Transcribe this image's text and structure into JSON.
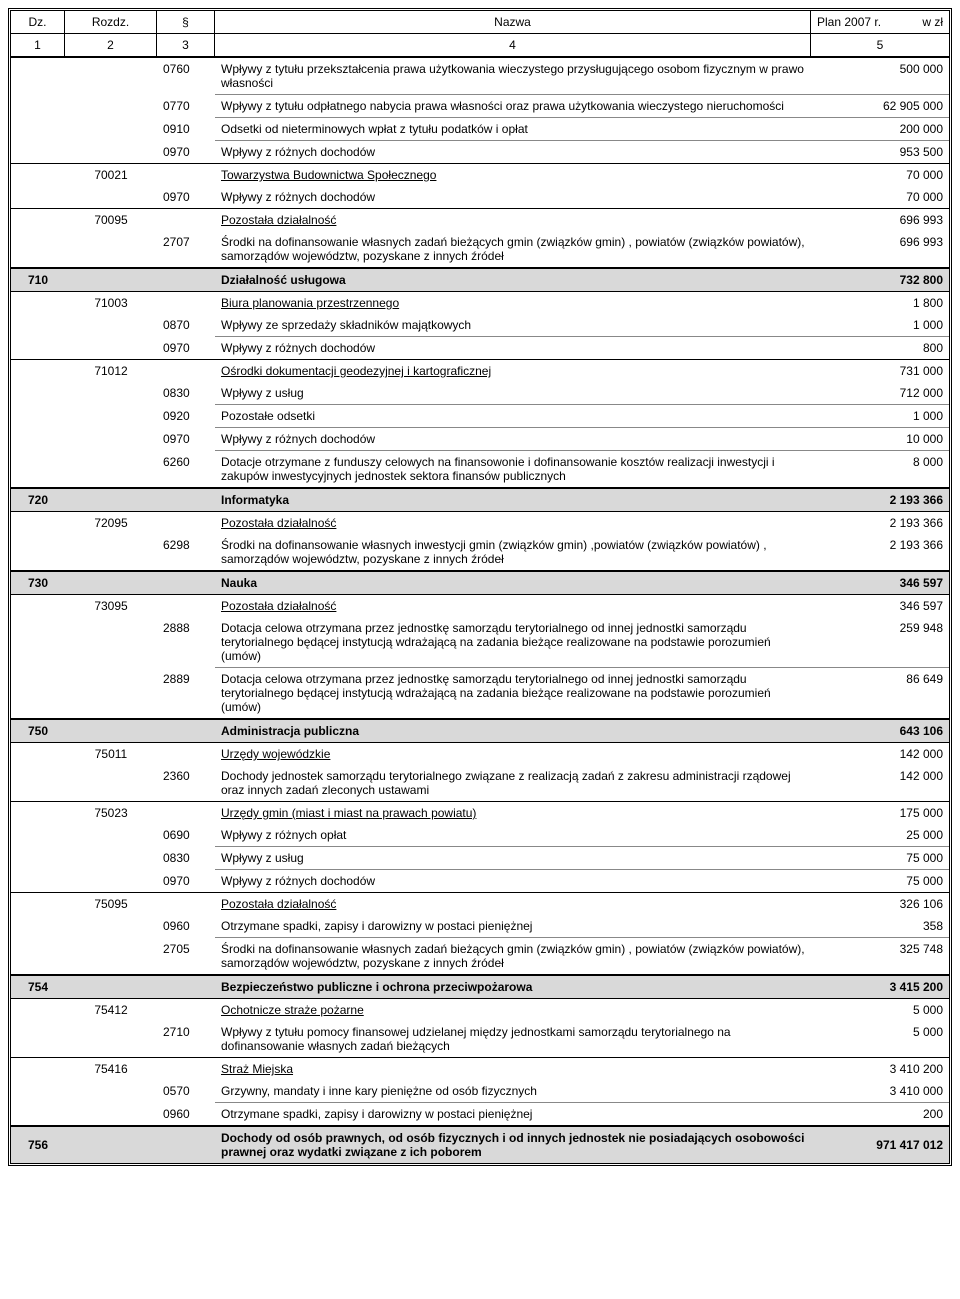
{
  "header": {
    "dz": "Dz.",
    "rozdz": "Rozdz.",
    "par": "§",
    "nazwa": "Nazwa",
    "plan": "Plan 2007 r.",
    "unit": "w zł",
    "n1": "1",
    "n2": "2",
    "n3": "3",
    "n4": "4",
    "n5": "5"
  },
  "rows": [
    {
      "type": "detail",
      "par": "0760",
      "nazwa": "Wpływy z tytułu przekształcenia prawa użytkowania wieczystego przysługującego osobom fizycznym w prawo własności",
      "plan": "500 000",
      "sep": false
    },
    {
      "type": "detail",
      "par": "0770",
      "nazwa": "Wpływy z tytułu odpłatnego nabycia prawa własności oraz prawa użytkowania wieczystego nieruchomości",
      "plan": "62 905 000",
      "sep": true
    },
    {
      "type": "detail",
      "par": "0910",
      "nazwa": "Odsetki od nieterminowych wpłat z tytułu podatków i opłat",
      "plan": "200 000",
      "sep": true
    },
    {
      "type": "detail",
      "par": "0970",
      "nazwa": "Wpływy z różnych dochodów",
      "plan": "953 500",
      "sep": true
    },
    {
      "type": "sub",
      "rozdz": "70021",
      "nazwa": "Towarzystwa Budownictwa Społecznego",
      "plan": "70 000"
    },
    {
      "type": "detail",
      "par": "0970",
      "nazwa": "Wpływy z różnych dochodów",
      "plan": "70 000",
      "sep": false
    },
    {
      "type": "sub",
      "rozdz": "70095",
      "nazwa": "Pozostała działalność",
      "plan": "696 993"
    },
    {
      "type": "detail",
      "par": "2707",
      "nazwa": "Środki na dofinansowanie własnych zadań bieżących gmin (związków gmin) , powiatów (związków powiatów), samorządów województw, pozyskane z innych źródeł",
      "plan": "696 993",
      "sep": false
    },
    {
      "type": "section",
      "dz": "710",
      "nazwa": "Działalność usługowa",
      "plan": "732 800"
    },
    {
      "type": "sub",
      "rozdz": "71003",
      "nazwa": "Biura planowania przestrzennego",
      "plan": "1 800",
      "first": true
    },
    {
      "type": "detail",
      "par": "0870",
      "nazwa": "Wpływy ze sprzedaży składników majątkowych",
      "plan": "1 000",
      "sep": false
    },
    {
      "type": "detail",
      "par": "0970",
      "nazwa": "Wpływy z różnych dochodów",
      "plan": "800",
      "sep": true
    },
    {
      "type": "sub",
      "rozdz": "71012",
      "nazwa": "Ośrodki dokumentacji geodezyjnej i kartograficznej",
      "plan": "731 000"
    },
    {
      "type": "detail",
      "par": "0830",
      "nazwa": "Wpływy z usług",
      "plan": "712 000",
      "sep": false
    },
    {
      "type": "detail",
      "par": "0920",
      "nazwa": "Pozostałe odsetki",
      "plan": "1 000",
      "sep": true
    },
    {
      "type": "detail",
      "par": "0970",
      "nazwa": "Wpływy z różnych dochodów",
      "plan": "10 000",
      "sep": true
    },
    {
      "type": "detail",
      "par": "6260",
      "nazwa": "Dotacje otrzymane z funduszy celowych  na finansowonie i dofinansowanie kosztów realizacji inwestycji i zakupów inwestycyjnych  jednostek sektora finansów publicznych",
      "plan": "8 000",
      "sep": true
    },
    {
      "type": "section",
      "dz": "720",
      "nazwa": "Informatyka",
      "plan": "2 193 366"
    },
    {
      "type": "sub",
      "rozdz": "72095",
      "nazwa": "Pozostała działalność",
      "plan": "2 193 366",
      "first": true
    },
    {
      "type": "detail",
      "par": "6298",
      "nazwa": "Środki na dofinansowanie własnych inwestycji gmin (związków gmin) ,powiatów (związków powiatów) , samorządów województw, pozyskane z innych źródeł",
      "plan": "2 193 366",
      "sep": false
    },
    {
      "type": "section",
      "dz": "730",
      "nazwa": "Nauka",
      "plan": "346 597"
    },
    {
      "type": "sub",
      "rozdz": "73095",
      "nazwa": "Pozostała działalność",
      "plan": "346 597",
      "first": true
    },
    {
      "type": "detail",
      "par": "2888",
      "nazwa": "Dotacja celowa otrzymana przez jednostkę samorządu terytorialnego od innej jednostki samorządu terytorialnego będącej instytucją wdrażającą na zadania bieżące realizowane na podstawie porozumień (umów)",
      "plan": "259 948",
      "sep": false
    },
    {
      "type": "detail",
      "par": "2889",
      "nazwa": "Dotacja celowa otrzymana przez jednostkę samorządu terytorialnego od innej jednostki samorządu terytorialnego będącej instytucją wdrażającą na zadania bieżące realizowane na podstawie porozumień (umów)",
      "plan": "86 649",
      "sep": true
    },
    {
      "type": "section",
      "dz": "750",
      "nazwa": "Administracja publiczna",
      "plan": "643 106"
    },
    {
      "type": "sub",
      "rozdz": "75011",
      "nazwa": "Urzędy wojewódzkie",
      "plan": "142 000",
      "first": true
    },
    {
      "type": "detail",
      "par": "2360",
      "nazwa": "Dochody jednostek samorządu  terytorialnego związane z realizacją zadań z zakresu administracji rządowej oraz innych zadań zleconych ustawami",
      "plan": "142 000",
      "sep": false
    },
    {
      "type": "sub",
      "rozdz": "75023",
      "nazwa": "Urzędy gmin (miast i miast na prawach powiatu)",
      "plan": "175 000"
    },
    {
      "type": "detail",
      "par": "0690",
      "nazwa": "Wpływy z różnych opłat",
      "plan": "25 000",
      "sep": false
    },
    {
      "type": "detail",
      "par": "0830",
      "nazwa": "Wpływy z usług",
      "plan": "75 000",
      "sep": true
    },
    {
      "type": "detail",
      "par": "0970",
      "nazwa": "Wpływy z różnych dochodów",
      "plan": "75 000",
      "sep": true
    },
    {
      "type": "sub",
      "rozdz": "75095",
      "nazwa": "Pozostała działalność",
      "plan": "326 106"
    },
    {
      "type": "detail",
      "par": "0960",
      "nazwa": "Otrzymane spadki, zapisy i darowizny w postaci pieniężnej",
      "plan": "358",
      "sep": false
    },
    {
      "type": "detail",
      "par": "2705",
      "nazwa": "Środki na dofinansowanie własnych zadań bieżących gmin (związków gmin) , powiatów (związków powiatów), samorządów województw, pozyskane z innych źródeł",
      "plan": "325 748",
      "sep": true
    },
    {
      "type": "section",
      "dz": "754",
      "nazwa": "Bezpieczeństwo publiczne i ochrona przeciwpożarowa",
      "plan": "3 415 200"
    },
    {
      "type": "sub",
      "rozdz": "75412",
      "nazwa": "Ochotnicze straże pożarne",
      "plan": "5 000",
      "first": true
    },
    {
      "type": "detail",
      "par": "2710",
      "nazwa": "Wpływy z tytułu pomocy finansowej udzielanej między jednostkami samorządu terytorialnego na dofinansowanie własnych zadań bieżących",
      "plan": "5 000",
      "sep": false
    },
    {
      "type": "sub",
      "rozdz": "75416",
      "nazwa": "Straż Miejska",
      "plan": "3 410 200"
    },
    {
      "type": "detail",
      "par": "0570",
      "nazwa": "Grzywny, mandaty i inne kary pieniężne od osób fizycznych",
      "plan": "3 410 000",
      "sep": false
    },
    {
      "type": "detail",
      "par": "0960",
      "nazwa": "Otrzymane spadki, zapisy i darowizny w postaci pieniężnej",
      "plan": "200",
      "sep": true
    },
    {
      "type": "section",
      "dz": "756",
      "nazwa": "Dochody od osób prawnych, od osób fizycznych i od innych jednostek nie posiadających osobowości prawnej oraz wydatki związane z ich poborem",
      "plan": "971 417 012",
      "last": true
    }
  ]
}
